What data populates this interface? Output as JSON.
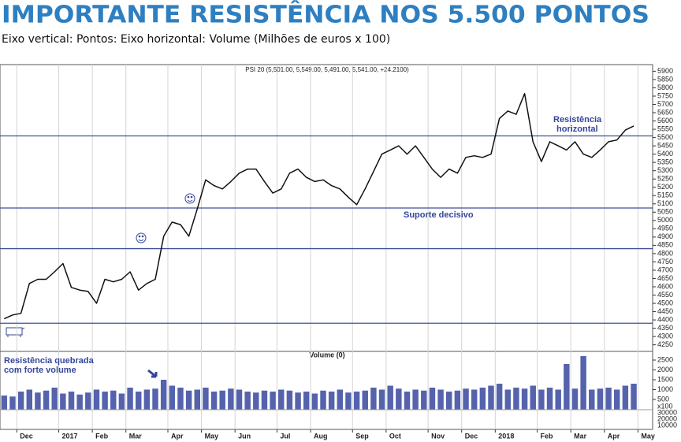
{
  "chart_data": {
    "type": "line",
    "title": "IMPORTANTE RESISTÊNCIA NOS 5.500 PONTOS",
    "subtitle": "Eixo vertical: Pontos: Eixo horizontal: Volume (Milhões de euros x 100)",
    "price_header": "PSI 20 (5,501.00, 5,549.00, 5,491.00, 5,541.00, +24.2100)",
    "categories": [
      null,
      null,
      "Dec",
      null,
      null,
      null,
      null,
      "2017",
      null,
      null,
      null,
      "Feb",
      null,
      null,
      null,
      "Mar",
      null,
      null,
      null,
      null,
      "Apr",
      null,
      null,
      null,
      "May",
      null,
      null,
      null,
      "Jun",
      null,
      null,
      null,
      null,
      "Jul",
      null,
      null,
      null,
      "Aug",
      null,
      null,
      null,
      null,
      "Sep",
      null,
      null,
      null,
      "Oct",
      null,
      null,
      null,
      null,
      "Nov",
      null,
      null,
      null,
      "Dec",
      null,
      null,
      null,
      "2018",
      null,
      null,
      null,
      null,
      "Feb",
      null,
      null,
      null,
      "Mar",
      null,
      null,
      null,
      "Apr",
      null,
      null,
      null,
      "May"
    ],
    "values": [
      4407,
      4430,
      4440,
      4620,
      4645,
      4645,
      4690,
      4740,
      4596,
      4580,
      4572,
      4500,
      4645,
      4630,
      4645,
      4690,
      4580,
      4620,
      4645,
      4905,
      4990,
      4975,
      4905,
      5070,
      5245,
      5210,
      5190,
      5235,
      5285,
      5310,
      5310,
      5235,
      5165,
      5190,
      5285,
      5310,
      5260,
      5235,
      5245,
      5210,
      5190,
      5140,
      5095,
      5190,
      5295,
      5400,
      5425,
      5450,
      5400,
      5450,
      5380,
      5310,
      5260,
      5310,
      5285,
      5380,
      5390,
      5380,
      5400,
      5615,
      5660,
      5640,
      5765,
      5475,
      5355,
      5475,
      5450,
      5425,
      5475,
      5400,
      5380,
      5425,
      5475,
      5485,
      5545,
      5570,
      null
    ],
    "color": "#111111",
    "ylim": [
      4215,
      5940
    ],
    "yticks": [
      4250,
      4300,
      4350,
      4400,
      4450,
      4500,
      4550,
      4600,
      4650,
      4700,
      4750,
      4800,
      4850,
      4900,
      4950,
      5000,
      5050,
      5100,
      5150,
      5200,
      5250,
      5300,
      5350,
      5400,
      5450,
      5500,
      5550,
      5600,
      5650,
      5700,
      5750,
      5800,
      5850,
      5900
    ],
    "levels": [
      5510,
      5075,
      4830,
      4380
    ],
    "level_color": "#3f4f9a",
    "grid": true,
    "annotations": {
      "resistance": [
        "Resistência",
        "horizontal"
      ],
      "support": "Suporte decisivo",
      "breakout": [
        "Resistência quebrada",
        "com forte volume"
      ]
    },
    "volume": {
      "title": "Volume (0)",
      "values": [
        700,
        650,
        900,
        1000,
        850,
        950,
        1100,
        800,
        900,
        750,
        850,
        1000,
        900,
        950,
        800,
        1100,
        900,
        1000,
        1050,
        1500,
        1200,
        1100,
        950,
        1000,
        1100,
        900,
        950,
        1050,
        1000,
        900,
        850,
        950,
        900,
        1000,
        950,
        850,
        900,
        800,
        950,
        900,
        1000,
        850,
        900,
        950,
        1100,
        1000,
        1200,
        1050,
        900,
        1000,
        950,
        1100,
        1000,
        900,
        950,
        1050,
        1000,
        1100,
        1200,
        1300,
        1000,
        1100,
        1050,
        1200,
        1000,
        1100,
        1000,
        2300,
        1050,
        2700,
        1000,
        1050,
        1100,
        1000,
        1200,
        1300,
        null
      ],
      "color": "#5563ad",
      "ylim": [
        0,
        2900
      ],
      "yticks": [
        500,
        1000,
        1500,
        2000,
        2500
      ],
      "extra_labels": [
        "x100",
        "30000",
        "20000",
        "10000"
      ]
    }
  }
}
